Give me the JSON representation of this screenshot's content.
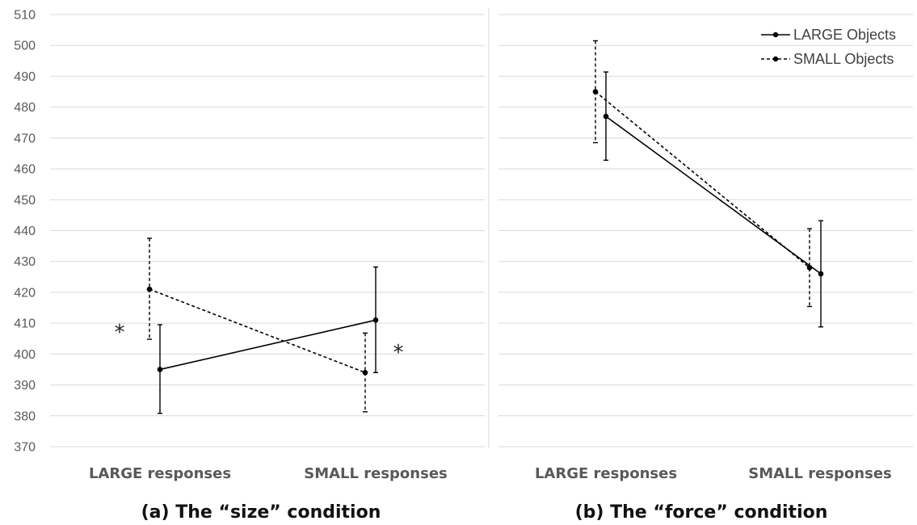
{
  "chart_data": [
    {
      "type": "line",
      "title": "(a) The “size” condition",
      "categories": [
        "LARGE responses",
        "SMALL responses"
      ],
      "ylim": [
        370,
        510
      ],
      "yticks": [
        370,
        380,
        390,
        400,
        410,
        420,
        430,
        440,
        450,
        460,
        470,
        480,
        490,
        500,
        510
      ],
      "grid": true,
      "series": [
        {
          "name": "LARGE Objects",
          "style": "solid",
          "values": [
            395,
            411
          ],
          "error_low": [
            380.8,
            394
          ],
          "error_high": [
            409.5,
            428.2
          ]
        },
        {
          "name": "SMALL Objects",
          "style": "dashed",
          "values": [
            421,
            394
          ],
          "error_low": [
            404.8,
            381.3
          ],
          "error_high": [
            437.5,
            406.8
          ]
        }
      ],
      "annotations": [
        "*",
        "*"
      ]
    },
    {
      "type": "line",
      "title": "(b) The “force” condition",
      "categories": [
        "LARGE responses",
        "SMALL responses"
      ],
      "ylim": [
        370,
        510
      ],
      "grid": true,
      "legend_position": "top-right",
      "series": [
        {
          "name": "LARGE Objects",
          "style": "solid",
          "values": [
            477,
            426
          ],
          "error_low": [
            462.8,
            408.8
          ],
          "error_high": [
            491.4,
            443.2
          ]
        },
        {
          "name": "SMALL Objects",
          "style": "dashed",
          "values": [
            485,
            428
          ],
          "error_low": [
            468.5,
            415.4
          ],
          "error_high": [
            501.5,
            440.6
          ]
        }
      ]
    }
  ],
  "colors": {
    "line": "#000000",
    "grid": "#d9d9d9",
    "tick_text": "#595959"
  }
}
